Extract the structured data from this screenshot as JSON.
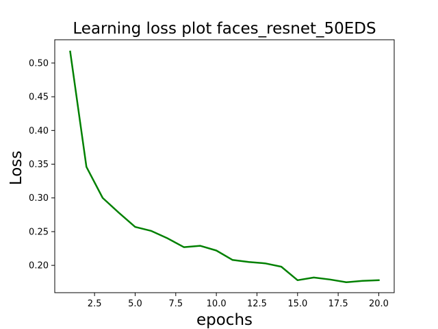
{
  "chart_data": {
    "type": "line",
    "title": "Learning loss plot faces_resnet_50EDS",
    "xlabel": "epochs",
    "ylabel": "Loss",
    "xlim": [
      0.05,
      20.95
    ],
    "ylim": [
      0.1595,
      0.5345
    ],
    "x_ticks": [
      2.5,
      5.0,
      7.5,
      10.0,
      12.5,
      15.0,
      17.5,
      20.0
    ],
    "x_tick_labels": [
      "2.5",
      "5.0",
      "7.5",
      "10.0",
      "12.5",
      "15.0",
      "17.5",
      "20.0"
    ],
    "y_ticks": [
      0.2,
      0.25,
      0.3,
      0.35,
      0.4,
      0.45,
      0.5
    ],
    "y_tick_labels": [
      "0.20",
      "0.25",
      "0.30",
      "0.35",
      "0.40",
      "0.45",
      "0.50"
    ],
    "grid": false,
    "series": [
      {
        "color": "#008000",
        "x": [
          1,
          2,
          3,
          4,
          5,
          6,
          7,
          8,
          9,
          10,
          11,
          12,
          13,
          14,
          15,
          16,
          17,
          18,
          19,
          20
        ],
        "y": [
          0.517,
          0.346,
          0.3,
          0.278,
          0.257,
          0.251,
          0.24,
          0.227,
          0.229,
          0.222,
          0.208,
          0.205,
          0.203,
          0.198,
          0.178,
          0.182,
          0.179,
          0.175,
          0.177,
          0.178
        ]
      }
    ]
  }
}
